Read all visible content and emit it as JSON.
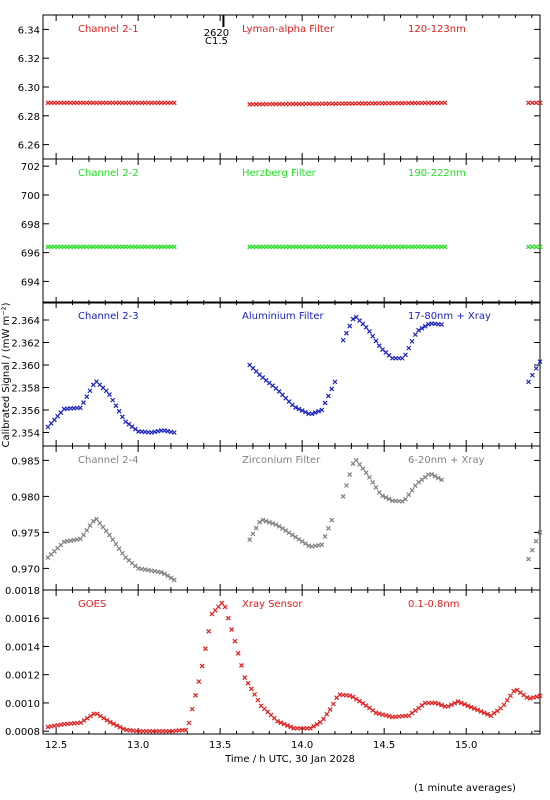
{
  "chart_data": [
    {
      "type": "scatter",
      "panel_labels": [
        "Channel 2-1",
        "Lyman-alpha Filter",
        "120-123nm"
      ],
      "color": "#e02020",
      "ylim": [
        6.25,
        6.35
      ],
      "yticks": [
        "6.26",
        "6.28",
        "6.30",
        "6.32",
        "6.34"
      ],
      "yticks_values": [
        6.26,
        6.28,
        6.3,
        6.32,
        6.34
      ],
      "flare_marker": {
        "x": 13.52,
        "labels": [
          "2620",
          "C1.5"
        ]
      },
      "series": [
        {
          "x": [
            12.45,
            13.22
          ],
          "y": [
            6.289,
            6.289
          ]
        },
        {
          "x": [
            13.68,
            14.87
          ],
          "y": [
            6.288,
            6.289
          ]
        },
        {
          "x": [
            15.38,
            15.45
          ],
          "y": [
            6.289,
            6.289
          ]
        }
      ]
    },
    {
      "type": "scatter",
      "panel_labels": [
        "Channel 2-2",
        "Herzberg Filter",
        "190-222nm"
      ],
      "color": "#22e022",
      "ylim": [
        692.5,
        702.5
      ],
      "yticks": [
        "694",
        "696",
        "698",
        "700",
        "702"
      ],
      "yticks_values": [
        694,
        696,
        698,
        700,
        702
      ],
      "series": [
        {
          "x": [
            12.45,
            13.22
          ],
          "y": [
            696.4,
            696.4
          ]
        },
        {
          "x": [
            13.68,
            14.87
          ],
          "y": [
            696.4,
            696.4
          ]
        },
        {
          "x": [
            15.38,
            15.45
          ],
          "y": [
            696.4,
            696.4
          ]
        }
      ]
    },
    {
      "type": "scatter",
      "panel_labels": [
        "Channel 2-3",
        "Aluminium Filter",
        "17-80nm + Xray"
      ],
      "color": "#1a22c0",
      "ylim": [
        2.3528,
        2.3656
      ],
      "yticks": [
        "2.354",
        "2.356",
        "2.358",
        "2.360",
        "2.362",
        "2.364"
      ],
      "yticks_values": [
        2.354,
        2.356,
        2.358,
        2.36,
        2.362,
        2.364
      ],
      "series": [
        {
          "x": [
            12.45,
            12.55,
            12.65,
            12.74,
            12.82,
            12.92,
            13.0,
            13.08,
            13.15,
            13.22
          ],
          "y": [
            2.3545,
            2.3561,
            2.3562,
            2.3586,
            2.3575,
            2.355,
            2.3541,
            2.354,
            2.3542,
            2.354
          ]
        },
        {
          "x": [
            13.68,
            13.75,
            13.85,
            13.95,
            14.05,
            14.12,
            14.2
          ],
          "y": [
            2.36,
            2.359,
            2.3578,
            2.3563,
            2.3556,
            2.356,
            2.3585
          ]
        },
        {
          "x": [
            14.25,
            14.32,
            14.4,
            14.48,
            14.55,
            14.62,
            14.7,
            14.78,
            14.85
          ],
          "y": [
            2.3622,
            2.3644,
            2.3632,
            2.3615,
            2.3606,
            2.3606,
            2.363,
            2.3637,
            2.3636
          ]
        },
        {
          "x": [
            15.38,
            15.45
          ],
          "y": [
            2.3585,
            2.3603
          ]
        }
      ]
    },
    {
      "type": "scatter",
      "panel_labels": [
        "Channel 2-4",
        "Zirconium Filter",
        "6-20nm + Xray"
      ],
      "color": "#808080",
      "ylim": [
        0.967,
        0.987
      ],
      "yticks": [
        "0.970",
        "0.975",
        "0.980",
        "0.985"
      ],
      "yticks_values": [
        0.97,
        0.975,
        0.98,
        0.985
      ],
      "series": [
        {
          "x": [
            12.45,
            12.55,
            12.65,
            12.74,
            12.82,
            12.92,
            13.0,
            13.08,
            13.15,
            13.22
          ],
          "y": [
            0.9715,
            0.9737,
            0.9741,
            0.977,
            0.9748,
            0.9716,
            0.97,
            0.9697,
            0.9694,
            0.9684
          ]
        },
        {
          "x": [
            13.68,
            13.75,
            13.85,
            13.95,
            14.05,
            14.12,
            14.18
          ],
          "y": [
            0.974,
            0.9768,
            0.976,
            0.9745,
            0.973,
            0.9733,
            0.9767
          ]
        },
        {
          "x": [
            14.25,
            14.32,
            14.4,
            14.48,
            14.55,
            14.62,
            14.7,
            14.78,
            14.85
          ],
          "y": [
            0.98,
            0.9853,
            0.983,
            0.9802,
            0.9794,
            0.9793,
            0.9818,
            0.9832,
            0.9823
          ]
        },
        {
          "x": [
            15.38,
            15.45
          ],
          "y": [
            0.9713,
            0.975
          ]
        }
      ]
    },
    {
      "type": "scatter",
      "panel_labels": [
        "GOES",
        "Xray Sensor",
        "0.1-0.8nm"
      ],
      "color": "#e02020",
      "ylim": [
        0.00078,
        0.0018
      ],
      "yticks": [
        "0.0008",
        "0.0010",
        "0.0012",
        "0.0014",
        "0.0016",
        "0.0018"
      ],
      "yticks_values": [
        0.0008,
        0.001,
        0.0012,
        0.0014,
        0.0016,
        0.0018
      ],
      "series": [
        {
          "x": [
            12.45,
            12.55,
            12.65,
            12.74,
            12.82,
            12.92,
            13.0,
            13.1,
            13.2,
            13.3,
            13.38,
            13.45,
            13.52,
            13.58,
            13.65,
            13.75,
            13.85,
            13.95,
            14.05,
            14.12,
            14.18,
            14.22,
            14.3,
            14.38,
            14.45,
            14.55,
            14.65,
            14.75,
            14.82,
            14.88,
            14.95,
            15.05,
            15.15,
            15.22,
            15.3,
            15.38,
            15.45
          ],
          "y": [
            0.00083,
            0.00085,
            0.00086,
            0.00093,
            0.00087,
            0.00081,
            0.0008,
            0.0008,
            0.0008,
            0.00081,
            0.0012,
            0.00163,
            0.00172,
            0.00148,
            0.00118,
            0.00098,
            0.00087,
            0.00082,
            0.00082,
            0.00087,
            0.00097,
            0.00106,
            0.00105,
            0.00099,
            0.00093,
            0.0009,
            0.00091,
            0.001,
            0.001,
            0.00097,
            0.00101,
            0.00096,
            0.00091,
            0.00097,
            0.0011,
            0.00103,
            0.00105
          ]
        }
      ]
    }
  ],
  "axes": {
    "xlim": [
      12.42,
      15.45
    ],
    "xticks": [
      "12.5",
      "13.0",
      "13.5",
      "14.0",
      "14.5",
      "15.0"
    ],
    "xticks_values": [
      12.5,
      13.0,
      13.5,
      14.0,
      14.5,
      15.0
    ],
    "xlabel": "Time / h UTC, 30 Jan 2028",
    "ylabel": "Calibrated Signal / (mW m⁻²)"
  },
  "footnote": "(1 minute averages)"
}
